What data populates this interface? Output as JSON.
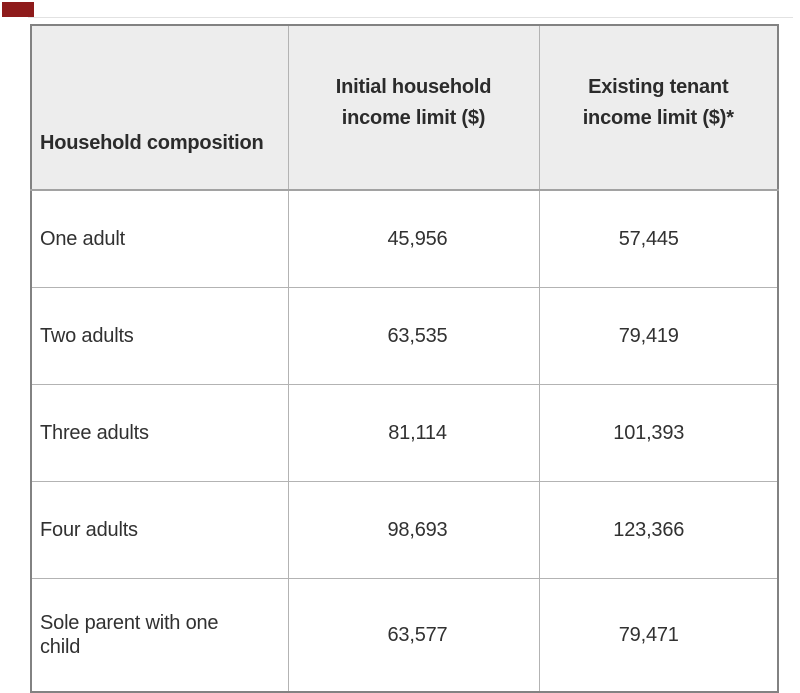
{
  "page": {
    "background": "#ffffff",
    "top_rule_color": "#e2e2e2",
    "corner_marker_color": "#8e1b1b",
    "header_bg": "#ededed",
    "outer_border_color": "#828282",
    "inner_border_color": "#b3b3b3",
    "text_color": "#2e2e2e"
  },
  "chart_data": {
    "type": "table",
    "columns": [
      "Household composition",
      "Initial household income limit ($)",
      "Existing tenant income limit ($)*"
    ],
    "rows": [
      {
        "composition": "One adult",
        "initial_limit": "45,956",
        "existing_limit": "57,445"
      },
      {
        "composition": "Two adults",
        "initial_limit": "63,535",
        "existing_limit": "79,419"
      },
      {
        "composition": "Three adults",
        "initial_limit": "81,114",
        "existing_limit": "101,393"
      },
      {
        "composition": "Four adults",
        "initial_limit": "98,693",
        "existing_limit": "123,366"
      },
      {
        "composition": "Sole parent with one child",
        "initial_limit": "63,577",
        "existing_limit": "79,471"
      }
    ]
  }
}
